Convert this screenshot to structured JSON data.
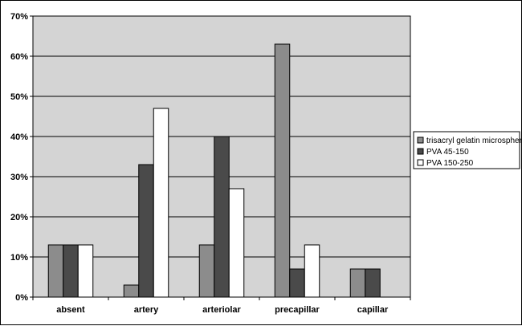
{
  "chart_data": {
    "type": "bar",
    "categories": [
      "absent",
      "artery",
      "arteriolar",
      "precapillar",
      "capillar"
    ],
    "series": [
      {
        "name": "trisacryl gelatin microspheres",
        "color": "#8c8c8c",
        "values": [
          13,
          3,
          13,
          63,
          7
        ]
      },
      {
        "name": "PVA 45-150",
        "color": "#4a4a4a",
        "values": [
          13,
          33,
          40,
          7,
          7
        ]
      },
      {
        "name": "PVA 150-250",
        "color": "#ffffff",
        "values": [
          13,
          47,
          27,
          13,
          0
        ]
      }
    ],
    "y_ticks": [
      "0%",
      "10%",
      "20%",
      "30%",
      "40%",
      "50%",
      "60%",
      "70%"
    ],
    "ylim": [
      0,
      70
    ],
    "grid": true,
    "legend_position": "right",
    "plot_background": "#d4d4d4"
  }
}
